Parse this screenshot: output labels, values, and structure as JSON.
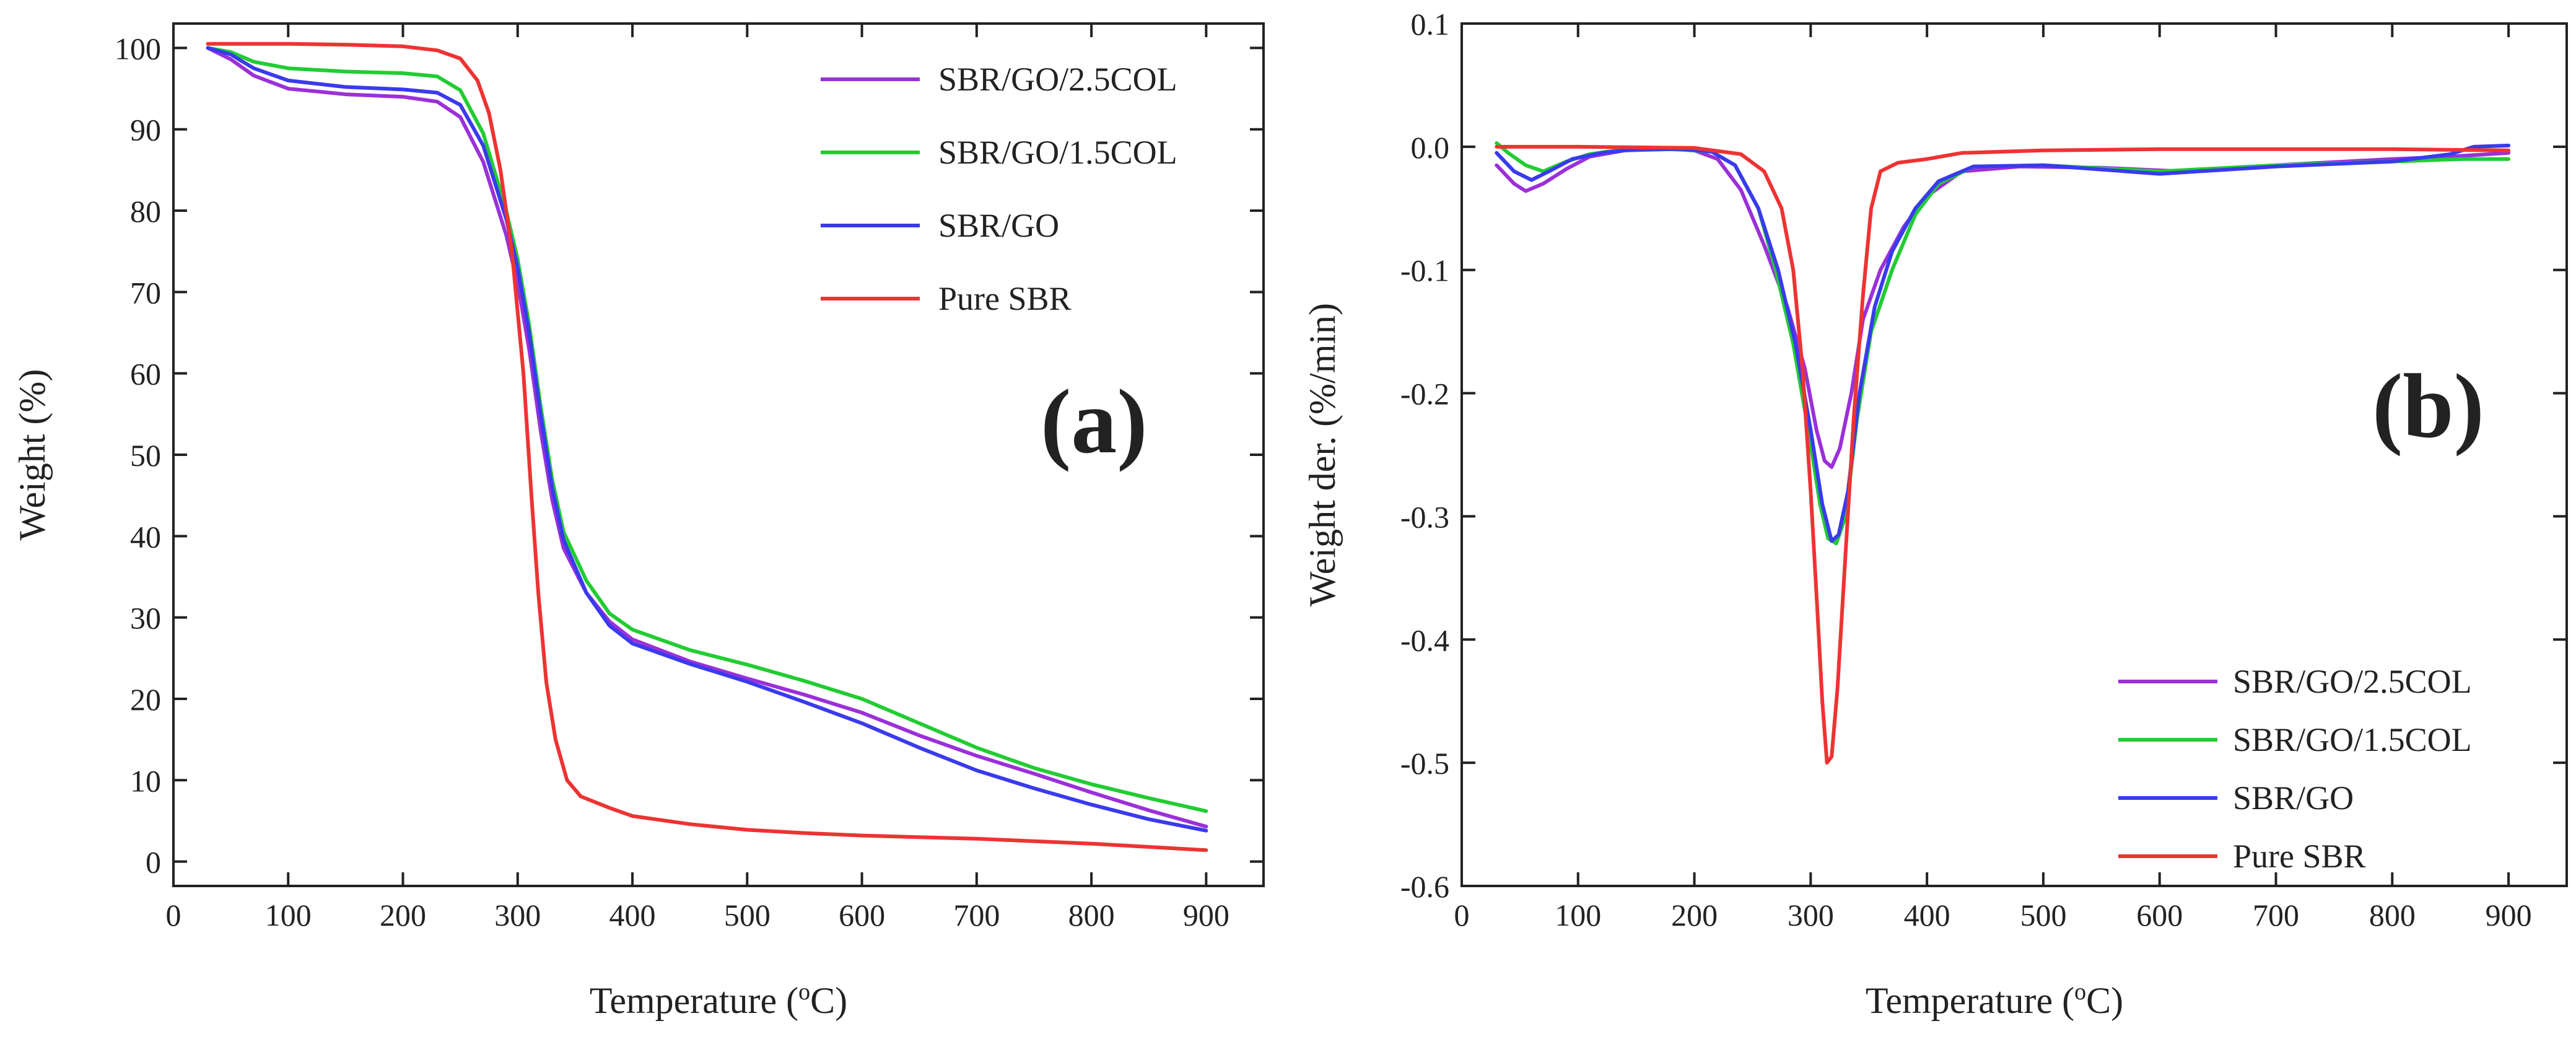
{
  "chart_data": [
    {
      "type": "line",
      "panel_label": "(a)",
      "xlabel": "Temperature (°C)",
      "xlabel_parts": [
        "Temperature (",
        "o",
        "C)"
      ],
      "ylabel": "Weight (%)",
      "xlim": [
        0,
        950
      ],
      "ylim": [
        -3,
        103
      ],
      "xticks": [
        0,
        100,
        200,
        300,
        400,
        500,
        600,
        700,
        800,
        900
      ],
      "yticks": [
        0,
        10,
        20,
        30,
        40,
        50,
        60,
        70,
        80,
        90,
        100
      ],
      "grid": false,
      "legend_position": "top-right",
      "series": [
        {
          "name": "SBR/GO/2.5COL",
          "color": "#9b30d9",
          "points": [
            [
              30,
              100
            ],
            [
              50,
              98.6
            ],
            [
              70,
              96.6
            ],
            [
              100,
              95
            ],
            [
              150,
              94.3
            ],
            [
              200,
              94
            ],
            [
              230,
              93.4
            ],
            [
              250,
              91.5
            ],
            [
              270,
              86
            ],
            [
              290,
              77
            ],
            [
              300,
              71
            ],
            [
              310,
              63
            ],
            [
              320,
              53
            ],
            [
              330,
              44.5
            ],
            [
              340,
              38.5
            ],
            [
              360,
              33
            ],
            [
              380,
              29.5
            ],
            [
              400,
              27.3
            ],
            [
              450,
              24.6
            ],
            [
              500,
              22.5
            ],
            [
              550,
              20.5
            ],
            [
              600,
              18.3
            ],
            [
              650,
              15.5
            ],
            [
              700,
              13
            ],
            [
              750,
              10.8
            ],
            [
              800,
              8.5
            ],
            [
              850,
              6.3
            ],
            [
              900,
              4.3
            ]
          ]
        },
        {
          "name": "SBR/GO/1.5COL",
          "color": "#22cc33",
          "points": [
            [
              30,
              100
            ],
            [
              50,
              99.5
            ],
            [
              70,
              98.3
            ],
            [
              100,
              97.5
            ],
            [
              150,
              97.1
            ],
            [
              200,
              96.9
            ],
            [
              230,
              96.5
            ],
            [
              250,
              94.8
            ],
            [
              270,
              89.5
            ],
            [
              290,
              80
            ],
            [
              300,
              74
            ],
            [
              310,
              66
            ],
            [
              320,
              56
            ],
            [
              330,
              47
            ],
            [
              340,
              40.5
            ],
            [
              360,
              34.5
            ],
            [
              380,
              30.5
            ],
            [
              400,
              28.5
            ],
            [
              450,
              26
            ],
            [
              500,
              24.2
            ],
            [
              550,
              22.2
            ],
            [
              600,
              20
            ],
            [
              650,
              17
            ],
            [
              700,
              14
            ],
            [
              750,
              11.5
            ],
            [
              800,
              9.5
            ],
            [
              850,
              7.8
            ],
            [
              900,
              6.2
            ]
          ]
        },
        {
          "name": "SBR/GO",
          "color": "#3a3aee",
          "points": [
            [
              30,
              100
            ],
            [
              50,
              99.2
            ],
            [
              70,
              97.5
            ],
            [
              100,
              96
            ],
            [
              150,
              95.2
            ],
            [
              200,
              94.9
            ],
            [
              230,
              94.5
            ],
            [
              250,
              93
            ],
            [
              270,
              88
            ],
            [
              290,
              79
            ],
            [
              300,
              73
            ],
            [
              310,
              65
            ],
            [
              320,
              55
            ],
            [
              330,
              46
            ],
            [
              340,
              39.5
            ],
            [
              360,
              33
            ],
            [
              380,
              29
            ],
            [
              400,
              26.8
            ],
            [
              450,
              24.3
            ],
            [
              500,
              22.1
            ],
            [
              550,
              19.6
            ],
            [
              600,
              17
            ],
            [
              650,
              14
            ],
            [
              700,
              11.2
            ],
            [
              750,
              9
            ],
            [
              800,
              7
            ],
            [
              850,
              5.2
            ],
            [
              900,
              3.8
            ]
          ]
        },
        {
          "name": "Pure SBR",
          "color": "#ee3333",
          "points": [
            [
              30,
              100.5
            ],
            [
              100,
              100.5
            ],
            [
              150,
              100.4
            ],
            [
              200,
              100.2
            ],
            [
              230,
              99.7
            ],
            [
              250,
              98.7
            ],
            [
              265,
              96
            ],
            [
              275,
              92
            ],
            [
              285,
              85
            ],
            [
              295,
              75
            ],
            [
              305,
              60
            ],
            [
              312,
              45
            ],
            [
              318,
              33
            ],
            [
              325,
              22
            ],
            [
              333,
              15
            ],
            [
              343,
              10
            ],
            [
              355,
              8
            ],
            [
              380,
              6.6
            ],
            [
              400,
              5.6
            ],
            [
              450,
              4.6
            ],
            [
              500,
              3.9
            ],
            [
              550,
              3.5
            ],
            [
              600,
              3.2
            ],
            [
              650,
              3
            ],
            [
              700,
              2.8
            ],
            [
              750,
              2.5
            ],
            [
              800,
              2.2
            ],
            [
              850,
              1.8
            ],
            [
              900,
              1.4
            ]
          ]
        }
      ]
    },
    {
      "type": "line",
      "panel_label": "(b)",
      "xlabel": "Temperature (°C)",
      "xlabel_parts": [
        "Temperature (",
        "o",
        "C)"
      ],
      "ylabel": "Weight der. (%/min)",
      "xlim": [
        0,
        950
      ],
      "ylim": [
        -0.6,
        0.1
      ],
      "xticks": [
        0,
        100,
        200,
        300,
        400,
        500,
        600,
        700,
        800,
        900
      ],
      "yticks": [
        0.1,
        0.0,
        -0.1,
        -0.2,
        -0.3,
        -0.4,
        -0.5,
        -0.6
      ],
      "ytick_labels": [
        "0.1",
        "0.0",
        "-0.1",
        "-0.2",
        "-0.3",
        "-0.4",
        "-0.5",
        "-0.6"
      ],
      "grid": false,
      "legend_position": "bottom-right",
      "series": [
        {
          "name": "SBR/GO/2.5COL",
          "color": "#9b30d9",
          "points": [
            [
              30,
              -0.015
            ],
            [
              45,
              -0.03
            ],
            [
              55,
              -0.036
            ],
            [
              70,
              -0.03
            ],
            [
              90,
              -0.018
            ],
            [
              110,
              -0.008
            ],
            [
              140,
              -0.003
            ],
            [
              180,
              -0.002
            ],
            [
              200,
              -0.003
            ],
            [
              220,
              -0.01
            ],
            [
              240,
              -0.035
            ],
            [
              260,
              -0.08
            ],
            [
              280,
              -0.13
            ],
            [
              295,
              -0.18
            ],
            [
              305,
              -0.23
            ],
            [
              312,
              -0.255
            ],
            [
              318,
              -0.26
            ],
            [
              325,
              -0.245
            ],
            [
              335,
              -0.2
            ],
            [
              345,
              -0.14
            ],
            [
              360,
              -0.1
            ],
            [
              380,
              -0.065
            ],
            [
              400,
              -0.04
            ],
            [
              430,
              -0.02
            ],
            [
              480,
              -0.016
            ],
            [
              550,
              -0.017
            ],
            [
              620,
              -0.02
            ],
            [
              700,
              -0.015
            ],
            [
              800,
              -0.01
            ],
            [
              850,
              -0.008
            ],
            [
              900,
              -0.005
            ]
          ]
        },
        {
          "name": "SBR/GO/1.5COL",
          "color": "#22cc33",
          "points": [
            [
              30,
              0.003
            ],
            [
              40,
              -0.005
            ],
            [
              55,
              -0.015
            ],
            [
              70,
              -0.02
            ],
            [
              90,
              -0.012
            ],
            [
              110,
              -0.006
            ],
            [
              140,
              -0.002
            ],
            [
              180,
              -0.002
            ],
            [
              215,
              -0.004
            ],
            [
              235,
              -0.015
            ],
            [
              255,
              -0.05
            ],
            [
              270,
              -0.1
            ],
            [
              285,
              -0.16
            ],
            [
              298,
              -0.23
            ],
            [
              308,
              -0.29
            ],
            [
              315,
              -0.318
            ],
            [
              322,
              -0.322
            ],
            [
              330,
              -0.3
            ],
            [
              340,
              -0.22
            ],
            [
              352,
              -0.15
            ],
            [
              370,
              -0.1
            ],
            [
              390,
              -0.055
            ],
            [
              410,
              -0.03
            ],
            [
              440,
              -0.016
            ],
            [
              500,
              -0.015
            ],
            [
              600,
              -0.02
            ],
            [
              700,
              -0.015
            ],
            [
              800,
              -0.012
            ],
            [
              860,
              -0.01
            ],
            [
              900,
              -0.01
            ]
          ]
        },
        {
          "name": "SBR/GO",
          "color": "#3a3aee",
          "points": [
            [
              30,
              -0.005
            ],
            [
              45,
              -0.02
            ],
            [
              60,
              -0.027
            ],
            [
              75,
              -0.02
            ],
            [
              95,
              -0.01
            ],
            [
              120,
              -0.005
            ],
            [
              150,
              -0.002
            ],
            [
              190,
              -0.002
            ],
            [
              215,
              -0.004
            ],
            [
              235,
              -0.015
            ],
            [
              255,
              -0.05
            ],
            [
              272,
              -0.1
            ],
            [
              287,
              -0.16
            ],
            [
              300,
              -0.23
            ],
            [
              310,
              -0.29
            ],
            [
              318,
              -0.32
            ],
            [
              324,
              -0.315
            ],
            [
              332,
              -0.28
            ],
            [
              342,
              -0.2
            ],
            [
              355,
              -0.13
            ],
            [
              370,
              -0.085
            ],
            [
              390,
              -0.05
            ],
            [
              410,
              -0.028
            ],
            [
              440,
              -0.016
            ],
            [
              500,
              -0.015
            ],
            [
              600,
              -0.022
            ],
            [
              700,
              -0.016
            ],
            [
              800,
              -0.012
            ],
            [
              850,
              -0.006
            ],
            [
              870,
              0.0
            ],
            [
              900,
              0.001
            ]
          ]
        },
        {
          "name": "Pure SBR",
          "color": "#ee3333",
          "points": [
            [
              30,
              0.0
            ],
            [
              100,
              0.0
            ],
            [
              200,
              -0.001
            ],
            [
              240,
              -0.006
            ],
            [
              260,
              -0.02
            ],
            [
              275,
              -0.05
            ],
            [
              285,
              -0.1
            ],
            [
              293,
              -0.18
            ],
            [
              300,
              -0.28
            ],
            [
              306,
              -0.38
            ],
            [
              310,
              -0.45
            ],
            [
              314,
              -0.5
            ],
            [
              318,
              -0.495
            ],
            [
              323,
              -0.44
            ],
            [
              330,
              -0.33
            ],
            [
              337,
              -0.22
            ],
            [
              345,
              -0.12
            ],
            [
              352,
              -0.05
            ],
            [
              360,
              -0.02
            ],
            [
              375,
              -0.013
            ],
            [
              400,
              -0.01
            ],
            [
              430,
              -0.005
            ],
            [
              500,
              -0.003
            ],
            [
              600,
              -0.002
            ],
            [
              700,
              -0.002
            ],
            [
              800,
              -0.002
            ],
            [
              900,
              -0.003
            ]
          ]
        }
      ]
    }
  ]
}
